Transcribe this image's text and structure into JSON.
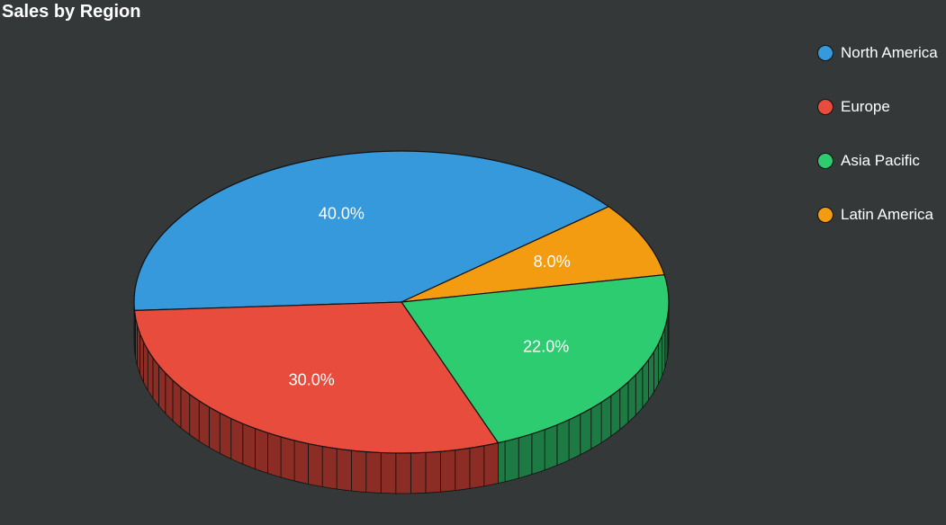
{
  "chart_data": {
    "type": "pie",
    "title": "Sales by Region",
    "categories": [
      "North America",
      "Europe",
      "Asia Pacific",
      "Latin America"
    ],
    "values": [
      40.0,
      30.0,
      22.0,
      8.0
    ],
    "labels": [
      "40.0%",
      "30.0%",
      "22.0%",
      "8.0%"
    ],
    "colors": [
      "#3599dc",
      "#e84c3d",
      "#2dcc70",
      "#f39c11"
    ],
    "side_colors": [
      "#1c5a86",
      "#8c2d25",
      "#1c7a42",
      "#94600c"
    ],
    "legend_position": "top-right",
    "style": "3d"
  }
}
